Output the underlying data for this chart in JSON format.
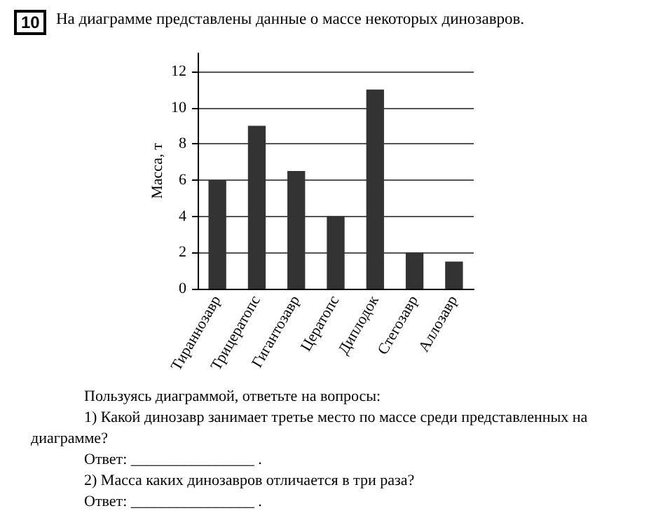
{
  "chart_data": {
    "type": "bar",
    "title": "На диаграмме представлены данные о массе некоторых динозавров.",
    "ylabel": "Масса, т",
    "categories": [
      "Тираннозавр",
      "Трицератопс",
      "Гигантозавр",
      "Цератопс",
      "Диплодок",
      "Стегозавр",
      "Аллозавр"
    ],
    "values": [
      6,
      9,
      6.5,
      4,
      11,
      2,
      1.5
    ],
    "color": "#333333",
    "ylim": [
      0,
      13
    ],
    "yticks": [
      0,
      2,
      4,
      6,
      8,
      10,
      12
    ],
    "grid": "y",
    "annotations": [
      "10",
      "Пользуясь диаграммой, ответьте на вопросы:",
      "1) Какой динозавр занимает третье место по массе среди представленных на диаграмме?",
      "Ответ: ________________ .",
      "2) Масса каких динозавров отличается в три раза?",
      "Ответ: ________________ ."
    ]
  }
}
